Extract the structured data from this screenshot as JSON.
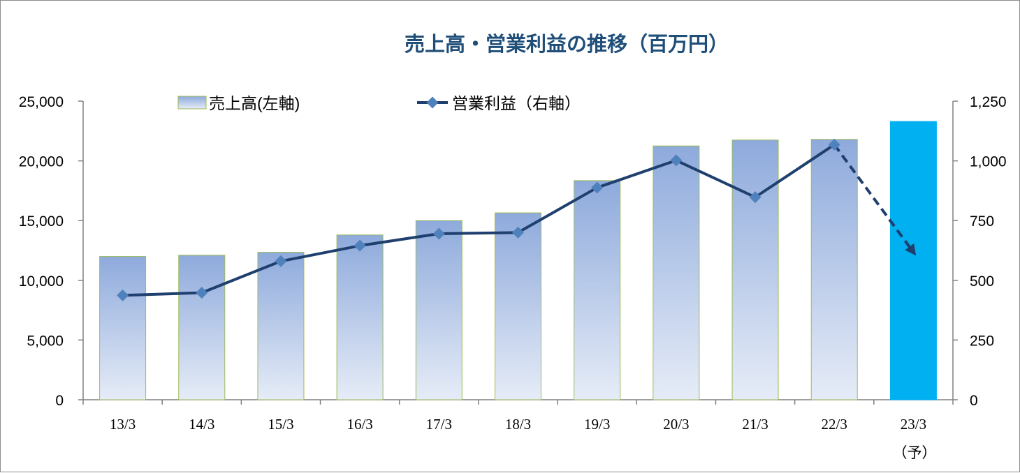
{
  "chart_data": {
    "type": "bar+line",
    "title": "売上高・営業利益の推移（百万円）",
    "categories": [
      "13/3",
      "14/3",
      "15/3",
      "16/3",
      "17/3",
      "18/3",
      "19/3",
      "20/3",
      "21/3",
      "22/3",
      "23/3"
    ],
    "forecast_note": "（予）",
    "series": [
      {
        "name": "売上高(左軸)",
        "type": "bar",
        "axis": "left",
        "values": [
          12000,
          12100,
          12350,
          13800,
          15000,
          15650,
          18350,
          21250,
          21750,
          21800,
          23300
        ],
        "forecast_index": 10
      },
      {
        "name": "営業利益（右軸）",
        "type": "line",
        "axis": "right",
        "values": [
          437,
          448,
          580,
          645,
          695,
          700,
          888,
          1002,
          848,
          1068,
          618
        ],
        "forecast_index": 10
      }
    ],
    "left_axis": {
      "ylim": [
        0,
        25000
      ],
      "ticks": [
        0,
        5000,
        10000,
        15000,
        20000,
        25000
      ],
      "tick_labels": [
        "0",
        "5,000",
        "10,000",
        "15,000",
        "20,000",
        "25,000"
      ]
    },
    "right_axis": {
      "ylim": [
        0,
        1250
      ],
      "ticks": [
        0,
        250,
        500,
        750,
        1000,
        1250
      ],
      "tick_labels": [
        "0",
        "250",
        "500",
        "750",
        "1,000",
        "1,250"
      ]
    },
    "legend_placement": "top",
    "grid": false,
    "colors": {
      "title": "#1f4e79",
      "bar_top": "#8eaadc",
      "bar_bottom": "#e6ecf7",
      "bar_border": "#9bbb59",
      "bar_forecast": "#00b0f0",
      "line": "#1f3f6e",
      "marker": "#4f81bd",
      "axis": "#808080",
      "text": "#000000"
    }
  }
}
